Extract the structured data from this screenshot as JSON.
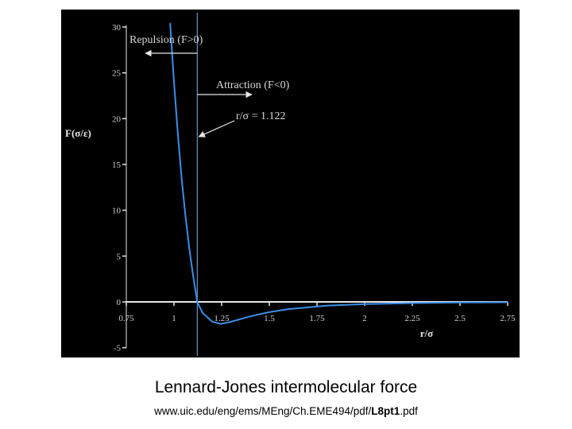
{
  "caption": "Lennard-Jones intermolecular force",
  "source": {
    "prefix": "www.uic.edu/eng/ems/MEng/Ch.EME494/pdf/",
    "bold": "L8pt1",
    "suffix": ".pdf"
  },
  "colors": {
    "background": "#000000",
    "curve": "#3b8ee8",
    "axis": "#e6e6e6",
    "reference_line": "#7fb4e6",
    "text": "#d8d8d8"
  },
  "chart_data": {
    "type": "line",
    "title": "",
    "xlabel": "r/σ",
    "ylabel": "F(σ/ε)",
    "xlim": [
      0.75,
      2.75
    ],
    "ylim": [
      -5,
      30
    ],
    "x_ticks": [
      "0.75",
      "1",
      "1.25",
      "1.5",
      "1.75",
      "2",
      "2.25",
      "2.5",
      "2.75"
    ],
    "y_ticks": [
      "-5",
      "0",
      "5",
      "10",
      "15",
      "20",
      "25",
      "30"
    ],
    "grid": false,
    "series": [
      {
        "x": [
          0.98,
          1.0,
          1.02,
          1.04,
          1.06,
          1.08,
          1.1,
          1.122,
          1.15,
          1.2,
          1.244,
          1.3,
          1.4,
          1.5,
          1.6,
          1.8,
          2.0,
          2.25,
          2.5,
          2.75
        ],
        "values": [
          30.4,
          24.0,
          18.4,
          13.5,
          9.4,
          5.9,
          2.9,
          0.0,
          -1.2,
          -2.15,
          -2.4,
          -2.17,
          -1.58,
          -1.12,
          -0.79,
          -0.42,
          -0.24,
          -0.13,
          -0.07,
          -0.04
        ]
      }
    ],
    "reference_line": {
      "x": 1.122
    },
    "annotations": [
      {
        "text": "Repulsion (F>0)",
        "arrow": "left"
      },
      {
        "text": "Attraction (F<0)",
        "arrow": "right"
      },
      {
        "text": "r/σ = 1.122",
        "arrow": "down-left"
      }
    ]
  }
}
